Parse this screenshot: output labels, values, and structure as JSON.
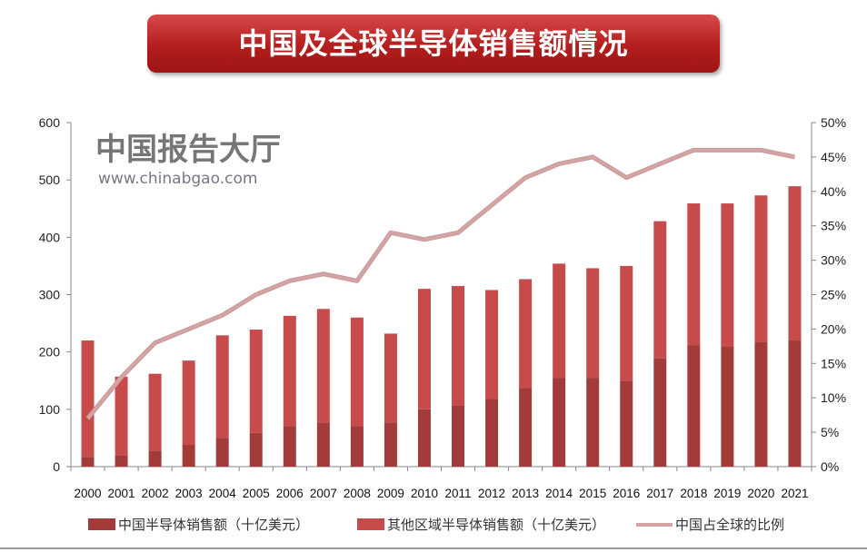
{
  "title": "中国及全球半导体销售额情况",
  "watermark": {
    "name": "中国报告大厅",
    "url": "www.chinabgao.com"
  },
  "chart_data": {
    "type": "bar",
    "stacked": true,
    "title": "中国及全球半导体销售额情况",
    "categories": [
      "2000",
      "2001",
      "2002",
      "2003",
      "2004",
      "2005",
      "2006",
      "2007",
      "2008",
      "2009",
      "2010",
      "2011",
      "2012",
      "2013",
      "2014",
      "2015",
      "2016",
      "2017",
      "2018",
      "2019",
      "2020",
      "2021"
    ],
    "series": [
      {
        "name": "中国半导体销售额（十亿美元）",
        "type": "bar",
        "axis": "left",
        "color": "#a33b3b",
        "values": [
          17,
          20,
          28,
          38,
          50,
          59,
          71,
          77,
          71,
          77,
          100,
          107,
          118,
          137,
          155,
          155,
          150,
          189,
          212,
          209,
          218,
          220
        ]
      },
      {
        "name": "其他区域半导体销售额（十亿美元）",
        "type": "bar",
        "axis": "left",
        "color": "#c84b4b",
        "values": [
          203,
          137,
          134,
          147,
          179,
          180,
          192,
          198,
          189,
          155,
          210,
          208,
          190,
          190,
          199,
          191,
          200,
          239,
          247,
          250,
          255,
          269
        ]
      },
      {
        "name": "中国占全球的比例",
        "type": "line",
        "axis": "right",
        "color": "#d4a4a4",
        "values": [
          7,
          13,
          18,
          20,
          22,
          25,
          27,
          28,
          27,
          34,
          33,
          34,
          38,
          42,
          44,
          45,
          42,
          44,
          46,
          46,
          46,
          45
        ]
      }
    ],
    "y_left": {
      "ylim": [
        0,
        600
      ],
      "ticks": [
        "0",
        "100",
        "200",
        "300",
        "400",
        "500",
        "600"
      ]
    },
    "y_right": {
      "ylim": [
        0,
        50
      ],
      "unit": "%",
      "ticks": [
        "0%",
        "5%",
        "10%",
        "15%",
        "20%",
        "25%",
        "30%",
        "35%",
        "40%",
        "45%",
        "50%"
      ]
    },
    "grid": false,
    "legend": "bottom"
  }
}
